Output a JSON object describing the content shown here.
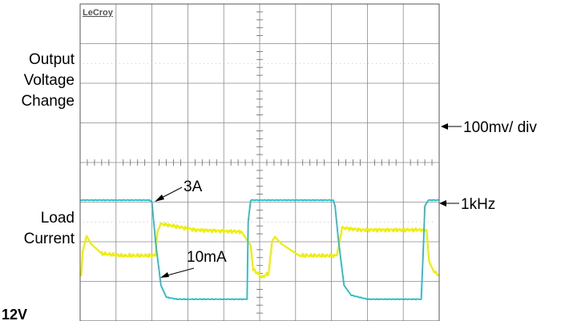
{
  "chart_data": {
    "type": "line",
    "brand": "LeCroy",
    "bottom_left_text": "12V",
    "trace_colors": {
      "voltage": "#eeee00",
      "current": "#22bcc8"
    },
    "grid_color": "#8a8a8a",
    "x_divisions": 10,
    "y_divisions": 8,
    "series": [
      {
        "name": "Output Voltage Change",
        "label_lines": [
          "Output",
          "Voltage",
          "Change"
        ],
        "color": "#eeee00",
        "x_div": [
          0,
          0.03,
          0.07,
          0.18,
          0.3,
          0.6,
          1.15,
          2.1,
          2.15,
          2.25,
          2.6,
          3.2,
          4.5,
          4.75,
          4.82,
          4.95,
          5.05,
          5.25,
          5.35,
          5.45,
          5.6,
          6.1,
          6.7,
          7.15,
          7.3,
          7.8,
          8.5,
          9.65,
          9.72,
          9.85,
          10
        ],
        "y_div": [
          1.15,
          1.15,
          1.75,
          2.15,
          1.95,
          1.7,
          1.65,
          1.65,
          2.25,
          2.45,
          2.4,
          2.3,
          2.25,
          1.9,
          1.3,
          1.2,
          1.1,
          1.2,
          2.05,
          2.1,
          1.95,
          1.65,
          1.65,
          1.65,
          2.35,
          2.3,
          2.3,
          2.3,
          1.5,
          1.25,
          1.15
        ]
      },
      {
        "name": "Load Current",
        "label_lines": [
          "Load",
          "Current"
        ],
        "color": "#22bcc8",
        "x_div": [
          0,
          1.95,
          2.0,
          2.1,
          2.25,
          2.4,
          2.7,
          3.5,
          4.65,
          4.68,
          4.75,
          4.85,
          7.05,
          7.1,
          7.2,
          7.35,
          7.55,
          8.0,
          9.5,
          9.55,
          9.6,
          9.7,
          10
        ],
        "y_div": [
          3.05,
          3.05,
          3.0,
          2.0,
          0.9,
          0.6,
          0.55,
          0.55,
          0.55,
          2.5,
          3.05,
          3.05,
          3.05,
          2.9,
          2.0,
          0.9,
          0.65,
          0.55,
          0.55,
          1.6,
          2.9,
          3.05,
          3.05
        ]
      }
    ],
    "annotations": [
      {
        "text": "3A"
      },
      {
        "text": "10mA"
      },
      {
        "text": "100mv/ div"
      },
      {
        "text": "1kHz"
      }
    ]
  }
}
